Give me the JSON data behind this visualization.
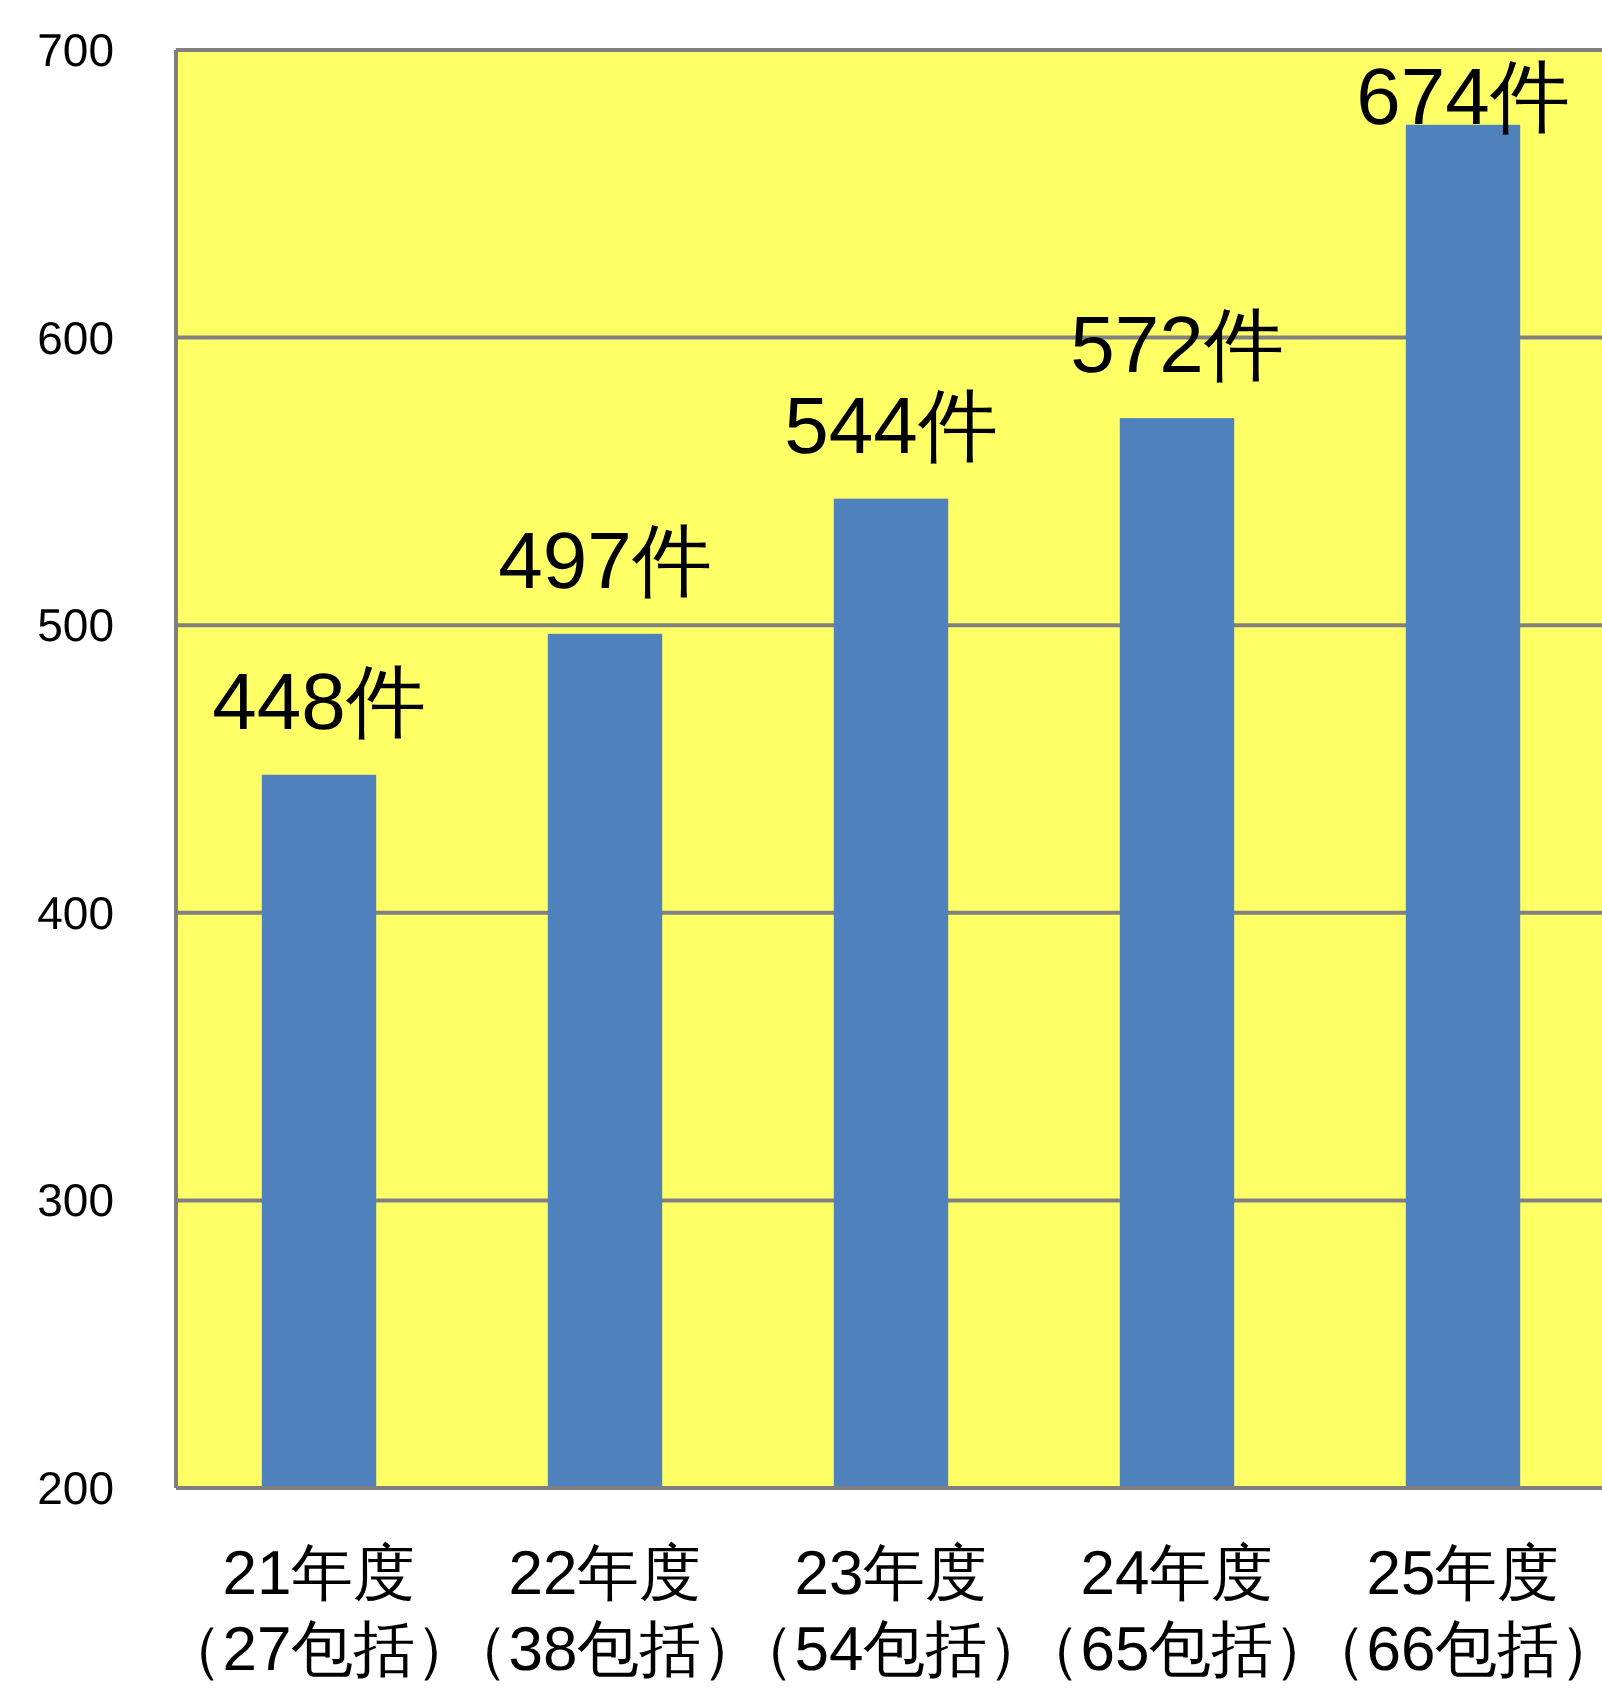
{
  "chart_data": {
    "type": "bar",
    "categories": [
      "21年度（27包括）",
      "22年度（38包括）",
      "23年度（54包括）",
      "24年度（65包括）",
      "25年度（66包括）"
    ],
    "values": [
      448,
      497,
      544,
      572,
      674
    ],
    "value_labels": [
      "448件",
      "497件",
      "544件",
      "572件",
      "674件"
    ],
    "color": "#4f81bd",
    "ylim": [
      200,
      700
    ],
    "yticks": [
      200,
      300,
      400,
      500,
      600,
      700
    ],
    "grid": "y"
  }
}
